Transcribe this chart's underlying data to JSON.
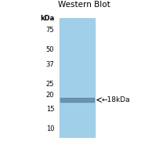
{
  "title": "Western Blot",
  "ylabel": "kDa",
  "mw_markers": [
    75,
    50,
    37,
    25,
    20,
    15,
    10
  ],
  "band_mw": 18,
  "band_label": "←18kDa",
  "lane_color": "#a0cfe8",
  "band_color": "#5a7fa0",
  "background_color": "#ffffff",
  "title_fontsize": 7.5,
  "marker_fontsize": 6,
  "band_label_fontsize": 6.5
}
